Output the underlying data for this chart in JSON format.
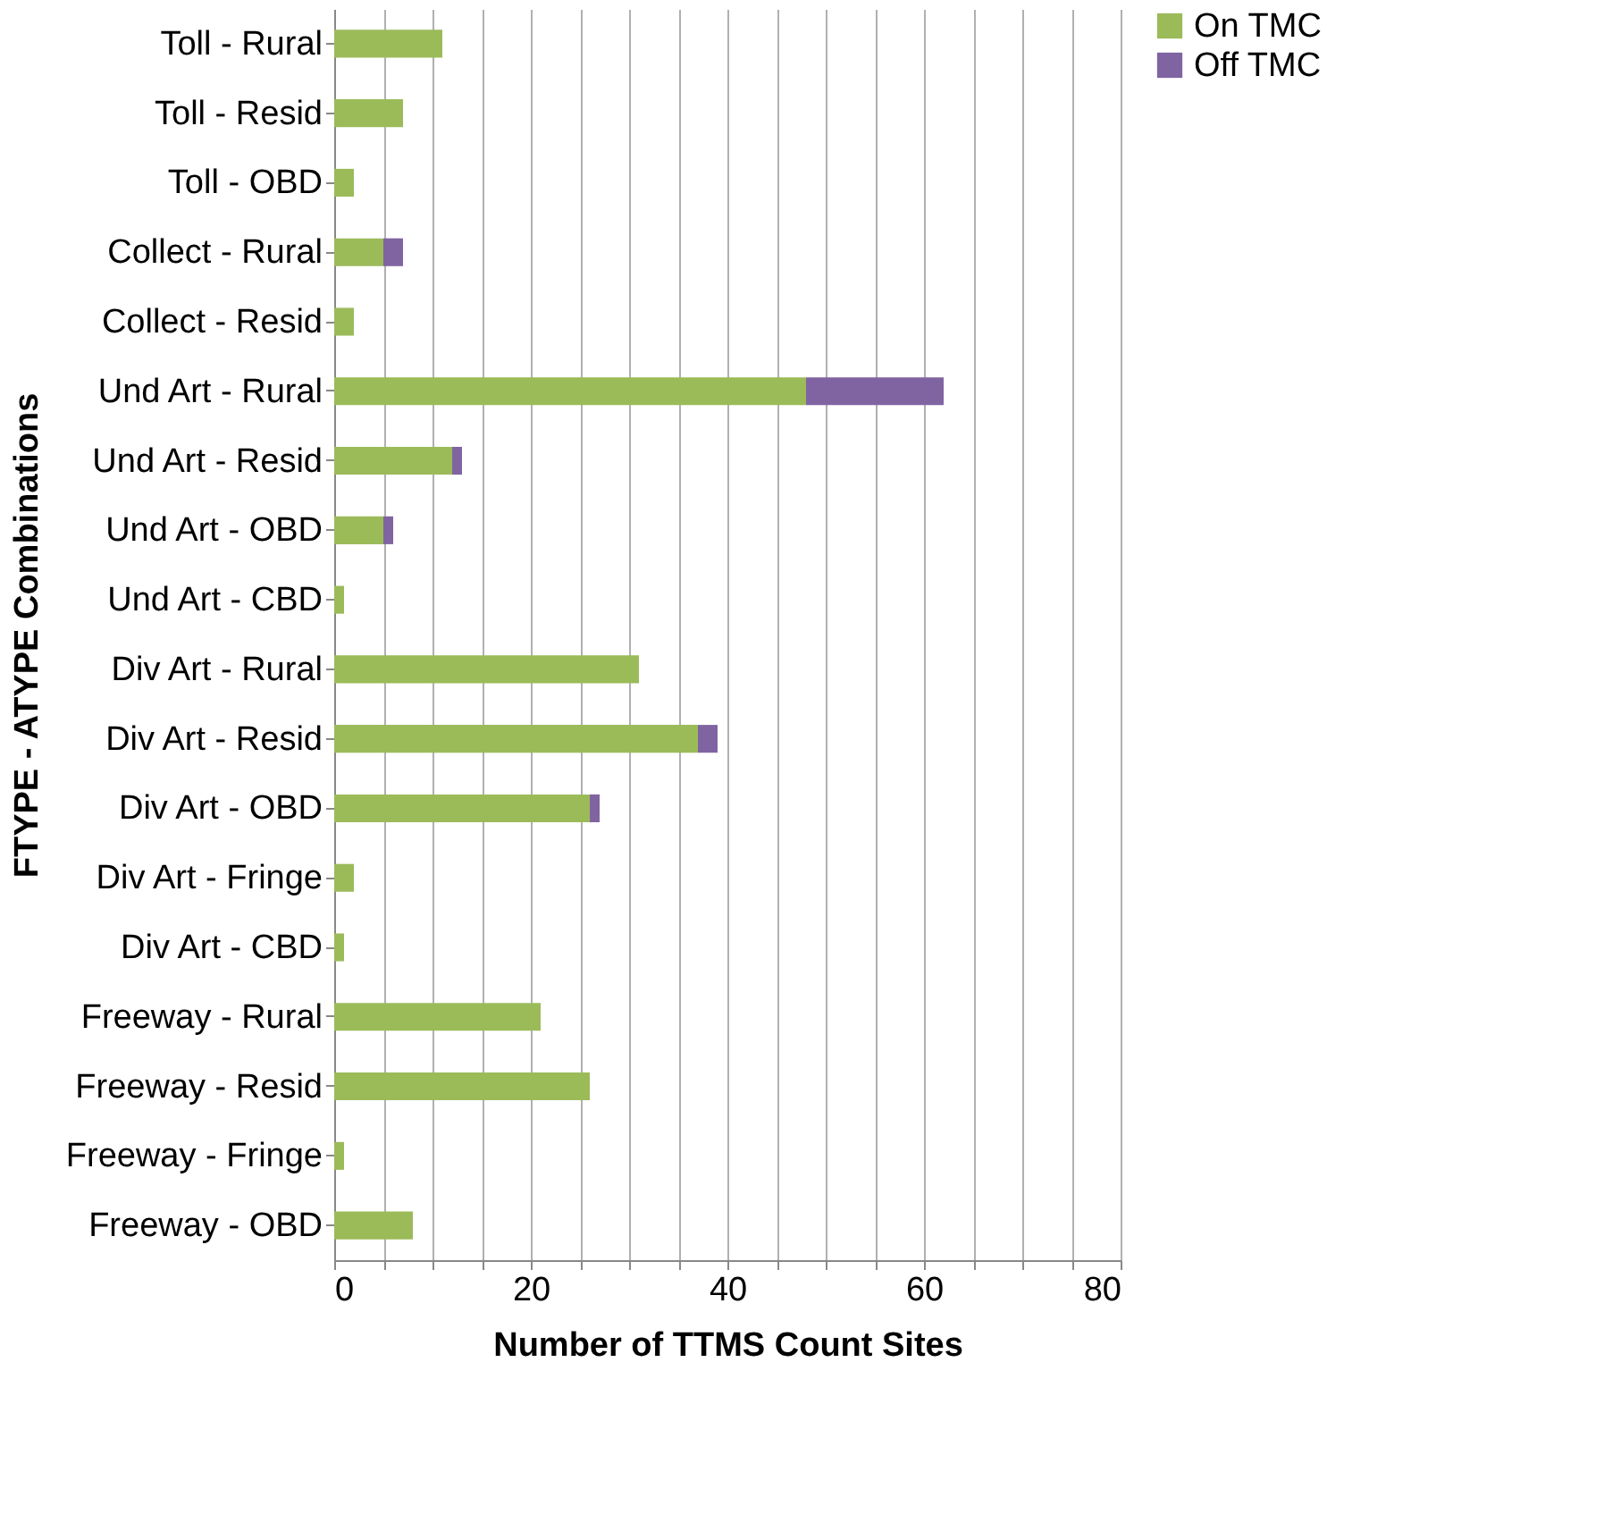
{
  "chart_data": {
    "type": "bar",
    "orientation": "horizontal",
    "stacked": true,
    "xlabel": "Number of TTMS Count Sites",
    "ylabel": "FTYPE - ATYPE Combinations",
    "categories": [
      "Toll - Rural",
      "Toll - Resid",
      "Toll - OBD",
      "Collect - Rural",
      "Collect - Resid",
      "Und Art - Rural",
      "Und Art - Resid",
      "Und Art - OBD",
      "Und Art - CBD",
      "Div Art - Rural",
      "Div Art - Resid",
      "Div Art - OBD",
      "Div Art - Fringe",
      "Div Art - CBD",
      "Freeway - Rural",
      "Freeway - Resid",
      "Freeway - Fringe",
      "Freeway - OBD"
    ],
    "series": [
      {
        "name": "On TMC",
        "color": "#9bbb59",
        "values": [
          11,
          7,
          2,
          5,
          2,
          48,
          12,
          5,
          1,
          31,
          37,
          26,
          2,
          1,
          21,
          26,
          1,
          8
        ]
      },
      {
        "name": "Off TMC",
        "color": "#8064a2",
        "values": [
          0,
          0,
          0,
          2,
          0,
          14,
          1,
          1,
          0,
          0,
          2,
          1,
          0,
          0,
          0,
          0,
          0,
          0
        ]
      }
    ],
    "xlim": [
      0,
      80
    ],
    "xticks": [
      0,
      {
        "value": 5,
        "label": null
      },
      {
        "value": 10,
        "label": null
      },
      {
        "value": 15,
        "label": null
      },
      20,
      {
        "value": 25,
        "label": null
      },
      {
        "value": 30,
        "label": null
      },
      {
        "value": 35,
        "label": null
      },
      40,
      {
        "value": 45,
        "label": null
      },
      {
        "value": 50,
        "label": null
      },
      {
        "value": 55,
        "label": null
      },
      60,
      {
        "value": 65,
        "label": null
      },
      {
        "value": 70,
        "label": null
      },
      {
        "value": 75,
        "label": null
      },
      80
    ],
    "grid": "x",
    "legend": "right"
  }
}
